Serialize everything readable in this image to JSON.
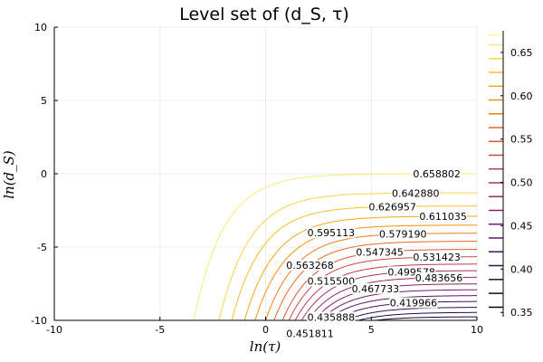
{
  "chart_data": {
    "type": "line",
    "title": "Level set of (d_S, τ)",
    "xlabel": "ln(τ)",
    "ylabel": "ln(d_S)",
    "xlim": [
      -10,
      10
    ],
    "ylim": [
      -10,
      10
    ],
    "xticks": [
      -10,
      -5,
      0,
      5,
      10
    ],
    "yticks": [
      -10,
      -5,
      0,
      5,
      10
    ],
    "grid": true,
    "legend": "none",
    "contours": [
      {
        "level": 0.658802,
        "label": "0.658802",
        "plateau": 0.0,
        "x0": -3.4
      },
      {
        "level": 0.64288,
        "label": "0.642880",
        "plateau": -1.3,
        "x0": -2.2
      },
      {
        "level": 0.626957,
        "label": "0.626957",
        "plateau": -2.2,
        "x0": -1.6
      },
      {
        "level": 0.611035,
        "label": "0.611035",
        "plateau": -2.9,
        "x0": -1.0
      },
      {
        "level": 0.595113,
        "label": "0.595113",
        "plateau": -3.5,
        "x0": -0.5
      },
      {
        "level": 0.57919,
        "label": "0.579190",
        "plateau": -4.05,
        "x0": 0.0
      },
      {
        "level": 0.563268,
        "label": "0.563268",
        "plateau": -4.6,
        "x0": 0.4
      },
      {
        "level": 0.547345,
        "label": "0.547345",
        "plateau": -5.15,
        "x0": 0.8
      },
      {
        "level": 0.531423,
        "label": "0.531423",
        "plateau": -5.65,
        "x0": 1.1
      },
      {
        "level": 0.5155,
        "label": "0.515500",
        "plateau": -6.15,
        "x0": 1.4
      },
      {
        "level": 0.499578,
        "label": "0.499578",
        "plateau": -6.6,
        "x0": 1.7
      },
      {
        "level": 0.483656,
        "label": "0.483656",
        "plateau": -7.05,
        "x0": 2.0
      },
      {
        "level": 0.467733,
        "label": "0.467733",
        "plateau": -7.5,
        "x0": 2.3
      },
      {
        "level": 0.451811,
        "label": "0.451811",
        "plateau": -7.9,
        "x0": 2.6
      },
      {
        "level": 0.435888,
        "label": "0.435888",
        "plateau": -8.3,
        "x0": 2.9
      },
      {
        "level": 0.419966,
        "label": "0.419966",
        "plateau": -8.7,
        "x0": 3.3
      },
      {
        "level": 0.404,
        "label": "",
        "plateau": -9.1,
        "x0": 3.8
      },
      {
        "level": 0.388,
        "label": "",
        "plateau": -9.45,
        "x0": 4.4
      },
      {
        "level": 0.372,
        "label": "",
        "plateau": -9.75,
        "x0": 5.2
      }
    ],
    "colorbar": {
      "min": 0.345,
      "max": 0.675,
      "ticks": [
        0.35,
        0.4,
        0.45,
        0.5,
        0.55,
        0.6,
        0.65
      ],
      "tick_labels": [
        "0.35",
        "0.40",
        "0.45",
        "0.50",
        "0.55",
        "0.60",
        "0.65"
      ],
      "levels": [
        0.356,
        0.372,
        0.388,
        0.404,
        0.419966,
        0.435888,
        0.451811,
        0.467733,
        0.483656,
        0.499578,
        0.5155,
        0.531423,
        0.547345,
        0.563268,
        0.57919,
        0.595113,
        0.611035,
        0.626957,
        0.64288,
        0.658802,
        0.67
      ]
    },
    "colors": {
      "low": "#000004",
      "high": "#fcffa4"
    }
  }
}
